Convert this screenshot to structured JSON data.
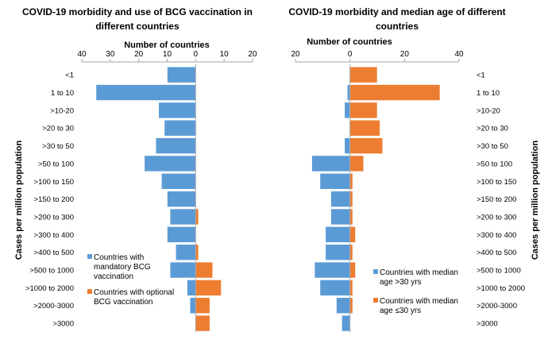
{
  "colors": {
    "blue": "#5B9BD5",
    "orange": "#ED7D31",
    "axis": "#A6A6A6"
  },
  "chart_data": [
    {
      "type": "bar",
      "orientation": "horizontal-diverging",
      "title_line1": "COVID-19 morbidity and use of BCG vaccination in",
      "title_line2": "different countries",
      "xlabel": "Number of countries",
      "ylabel": "Cases per million population",
      "xlim": [
        -40,
        20
      ],
      "xticks": [
        -40,
        -30,
        -20,
        -10,
        0,
        10,
        20
      ],
      "xtick_labels": [
        "40",
        "30",
        "20",
        "10",
        "0",
        "10",
        "20"
      ],
      "categories": [
        "<1",
        "1 to 10",
        ">10-20",
        ">20 to 30",
        ">30 to 50",
        ">50 to 100",
        ">100 to 150",
        ">150 to 200",
        ">200 to 300",
        ">300 to 400",
        ">400 to 500",
        ">500 to 1000",
        ">1000 to 2000",
        ">2000-3000",
        ">3000"
      ],
      "series": [
        {
          "name": "Countries with mandatory BCG vaccination",
          "legend_lines": [
            "Countries with",
            "mandatory BCG",
            "vaccination"
          ],
          "color": "#5B9BD5",
          "direction": "left",
          "values": [
            10,
            35,
            13,
            11,
            14,
            18,
            12,
            10,
            9,
            10,
            7,
            9,
            3,
            2,
            0
          ]
        },
        {
          "name": "Countries with optional BCG vaccination",
          "legend_lines": [
            "Countries with optional",
            "BCG vaccination"
          ],
          "color": "#ED7D31",
          "direction": "right",
          "values": [
            0,
            0,
            0,
            0,
            0,
            0,
            0,
            0,
            1,
            0,
            1,
            6,
            9,
            5,
            5
          ]
        }
      ],
      "legend_position": "bottom-left",
      "ylabel_side": "left",
      "category_labels_side": "left"
    },
    {
      "type": "bar",
      "orientation": "horizontal-diverging",
      "title_line1": "COVID-19 morbidity and median age of different",
      "title_line2": "countries",
      "xlabel": "Number of countries",
      "ylabel": "Cases per million population",
      "xlim": [
        -20,
        40
      ],
      "xticks": [
        -20,
        0,
        20,
        40
      ],
      "xtick_labels": [
        "20",
        "0",
        "20",
        "40"
      ],
      "categories": [
        "<1",
        "1 to 10",
        ">10-20",
        ">20 to 30",
        ">30 to 50",
        ">50 to 100",
        ">100 to 150",
        ">150 to 200",
        ">200 to 300",
        ">300 to 400",
        ">400 to 500",
        ">500 to 1000",
        ">1000 to 2000",
        ">2000-3000",
        ">3000"
      ],
      "series": [
        {
          "name": "Countries with median age >30 yrs",
          "legend_lines": [
            "Countries with median",
            "age >30 yrs"
          ],
          "color": "#5B9BD5",
          "direction": "left",
          "values": [
            0,
            1,
            2,
            0,
            2,
            14,
            11,
            7,
            7,
            9,
            9,
            13,
            11,
            5,
            3
          ]
        },
        {
          "name": "Countries with median age ≤30 yrs",
          "legend_lines": [
            "Countries with median",
            "age ≤30 yrs"
          ],
          "color": "#ED7D31",
          "direction": "right",
          "values": [
            10,
            33,
            10,
            11,
            12,
            5,
            1,
            1,
            1,
            2,
            1,
            2,
            1,
            1,
            0
          ]
        }
      ],
      "legend_position": "bottom-right",
      "ylabel_side": "right",
      "category_labels_side": "right"
    }
  ]
}
